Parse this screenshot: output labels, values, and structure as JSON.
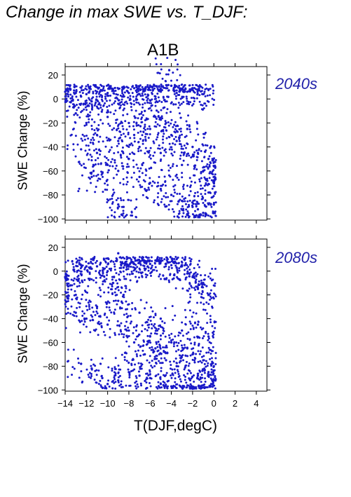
{
  "chart_data": {
    "type": "scatter",
    "title": "Change in max SWE vs. T_DJF:",
    "scenario": "A1B",
    "xlabel": "T(DJF,degC)",
    "ylabel": "SWE Change (%)",
    "xlim": [
      -14,
      5
    ],
    "ylim": [
      -101,
      27
    ],
    "x_ticks": [
      -14,
      -12,
      -10,
      -8,
      -6,
      -4,
      -2,
      0,
      2,
      4
    ],
    "y_ticks": [
      20,
      0,
      -20,
      -40,
      -60,
      -80,
      -100
    ],
    "marker_color": "#1a1ac8",
    "panels": [
      {
        "period": "2040s",
        "points": [
          [
            -14,
            6
          ],
          [
            -13.5,
            8
          ],
          [
            -13,
            5
          ],
          [
            -12.5,
            2
          ],
          [
            -12,
            4
          ],
          [
            -11.5,
            -2
          ],
          [
            -11,
            6
          ],
          [
            -10.5,
            7
          ],
          [
            -10,
            5
          ],
          [
            -9.5,
            8
          ],
          [
            -9,
            -4
          ],
          [
            -8.5,
            2
          ],
          [
            -8,
            5
          ],
          [
            -7.5,
            9
          ],
          [
            -7,
            4
          ],
          [
            -6.5,
            8
          ],
          [
            -6,
            10
          ],
          [
            -5.5,
            2
          ],
          [
            -5,
            7
          ],
          [
            -4.5,
            9
          ],
          [
            -4,
            11
          ],
          [
            -3.5,
            5
          ],
          [
            -3,
            8
          ],
          [
            -2.5,
            6
          ],
          [
            -2,
            9
          ],
          [
            -1.5,
            7
          ],
          [
            -1,
            4
          ],
          [
            -0.5,
            8
          ],
          [
            -4.2,
            24
          ],
          [
            -13,
            -12
          ],
          [
            -12,
            -20
          ],
          [
            -11,
            -30
          ],
          [
            -10,
            -15
          ],
          [
            -9,
            -35
          ],
          [
            -8,
            -20
          ],
          [
            -7,
            -40
          ],
          [
            -6,
            -25
          ],
          [
            -5,
            -45
          ],
          [
            -4,
            -30
          ],
          [
            -3,
            -55
          ],
          [
            -2,
            -40
          ],
          [
            -1,
            -60
          ],
          [
            -12.5,
            -42
          ],
          [
            -11,
            -45
          ],
          [
            -10,
            -55
          ],
          [
            -9,
            -60
          ],
          [
            -8,
            -50
          ],
          [
            -7,
            -65
          ],
          [
            -6,
            -70
          ],
          [
            -5,
            -75
          ],
          [
            -4,
            -80
          ],
          [
            -3,
            -85
          ],
          [
            -2,
            -90
          ],
          [
            -1,
            -95
          ],
          [
            0,
            -88
          ],
          [
            -0.5,
            -78
          ],
          [
            -1.5,
            -92
          ],
          [
            -2.5,
            -96
          ],
          [
            -9,
            -88
          ],
          [
            -8.5,
            -90
          ],
          [
            -10.5,
            -62
          ],
          [
            -11.5,
            -65
          ],
          [
            -7.5,
            -30
          ],
          [
            -6.5,
            -10
          ],
          [
            -5.5,
            -15
          ],
          [
            -4.5,
            -20
          ],
          [
            -3.5,
            -35
          ],
          [
            -2.5,
            -25
          ],
          [
            -1.5,
            -45
          ],
          [
            -0.5,
            -50
          ],
          [
            0,
            -70
          ],
          [
            -0.2,
            -62
          ]
        ]
      },
      {
        "period": "2080s",
        "points": [
          [
            -14,
            -5
          ],
          [
            -13.5,
            -12
          ],
          [
            -13,
            -20
          ],
          [
            -12.5,
            5
          ],
          [
            -12,
            4
          ],
          [
            -11.5,
            2
          ],
          [
            -11,
            4
          ],
          [
            -10,
            0
          ],
          [
            -9,
            15
          ],
          [
            -8.5,
            3
          ],
          [
            -8,
            5
          ],
          [
            -7.5,
            6
          ],
          [
            -7,
            8
          ],
          [
            -6.5,
            7
          ],
          [
            -6,
            6
          ],
          [
            -5.5,
            9
          ],
          [
            -5,
            8
          ],
          [
            -4.5,
            6
          ],
          [
            -4,
            5
          ],
          [
            -3.5,
            3
          ],
          [
            -3,
            4
          ],
          [
            -2.5,
            -2
          ],
          [
            -2,
            -5
          ],
          [
            -1.5,
            -15
          ],
          [
            -1,
            -10
          ],
          [
            -0.5,
            -20
          ],
          [
            -13,
            -35
          ],
          [
            -12,
            -40
          ],
          [
            -11,
            -30
          ],
          [
            -10,
            -45
          ],
          [
            -9,
            -25
          ],
          [
            -8,
            -50
          ],
          [
            -7,
            -35
          ],
          [
            -6,
            -55
          ],
          [
            -5,
            -40
          ],
          [
            -4,
            -60
          ],
          [
            -3,
            -50
          ],
          [
            -2,
            -70
          ],
          [
            -1,
            -75
          ],
          [
            0,
            -80
          ],
          [
            -12.5,
            -78
          ],
          [
            -11.5,
            -82
          ],
          [
            -10.5,
            -90
          ],
          [
            -10,
            -95
          ],
          [
            -9,
            -92
          ],
          [
            -8,
            -85
          ],
          [
            -7,
            -88
          ],
          [
            -6,
            -90
          ],
          [
            -5,
            -95
          ],
          [
            -4,
            -97
          ],
          [
            -3,
            -98
          ],
          [
            -2,
            -99
          ],
          [
            -1,
            -96
          ],
          [
            0,
            -92
          ],
          [
            -0.5,
            -85
          ],
          [
            -1.5,
            -88
          ],
          [
            -7.5,
            -60
          ],
          [
            -6.5,
            -70
          ],
          [
            -5.5,
            -65
          ],
          [
            -4.5,
            -75
          ],
          [
            -3.5,
            -80
          ],
          [
            -2.5,
            -65
          ],
          [
            -1.5,
            -45
          ],
          [
            -0.5,
            -55
          ],
          [
            -8.5,
            -20
          ],
          [
            -9.5,
            -10
          ]
        ]
      }
    ]
  }
}
